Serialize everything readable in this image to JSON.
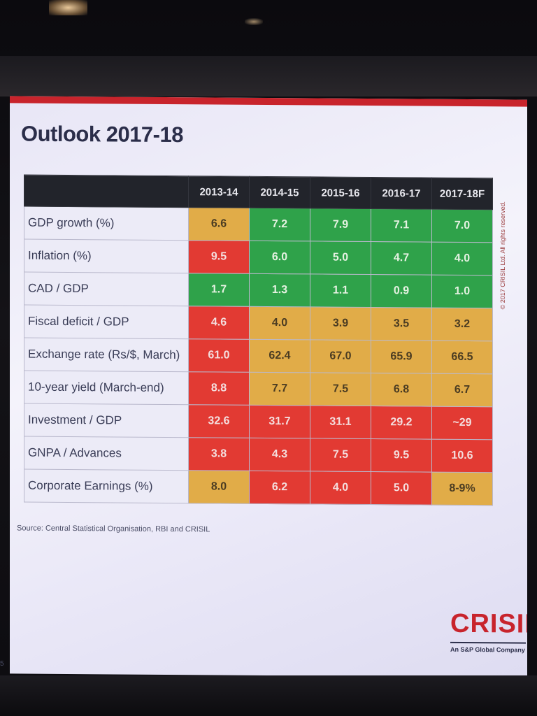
{
  "slide": {
    "title": "Outlook 2017-18",
    "source": "Source: Central Statistical Organisation, RBI and CRISIL",
    "copyright": "© 2017 CRISIL Ltd. All rights reserved.",
    "logo": "CRISIL",
    "logo_tagline": "An S&P Global Company",
    "page_number": "5"
  },
  "table": {
    "years": [
      "2013-14",
      "2014-15",
      "2015-16",
      "2016-17",
      "2017-18F"
    ],
    "rows": [
      {
        "label": "GDP growth (%)",
        "values": [
          "6.6",
          "7.2",
          "7.9",
          "7.1",
          "7.0"
        ],
        "colors": [
          "amber",
          "green",
          "green",
          "green",
          "green"
        ]
      },
      {
        "label": "Inflation (%)",
        "values": [
          "9.5",
          "6.0",
          "5.0",
          "4.7",
          "4.0"
        ],
        "colors": [
          "red",
          "green",
          "green",
          "green",
          "green"
        ]
      },
      {
        "label": "CAD / GDP",
        "values": [
          "1.7",
          "1.3",
          "1.1",
          "0.9",
          "1.0"
        ],
        "colors": [
          "green",
          "green",
          "green",
          "green",
          "green"
        ]
      },
      {
        "label": "Fiscal deficit / GDP",
        "values": [
          "4.6",
          "4.0",
          "3.9",
          "3.5",
          "3.2"
        ],
        "colors": [
          "red",
          "amber",
          "amber",
          "amber",
          "amber"
        ]
      },
      {
        "label": "Exchange rate (Rs/$, March)",
        "values": [
          "61.0",
          "62.4",
          "67.0",
          "65.9",
          "66.5"
        ],
        "colors": [
          "red",
          "amber",
          "amber",
          "amber",
          "amber"
        ]
      },
      {
        "label": "10-year yield (March-end)",
        "values": [
          "8.8",
          "7.7",
          "7.5",
          "6.8",
          "6.7"
        ],
        "colors": [
          "red",
          "amber",
          "amber",
          "amber",
          "amber"
        ]
      },
      {
        "label": "Investment / GDP",
        "values": [
          "32.6",
          "31.7",
          "31.1",
          "29.2",
          "~29"
        ],
        "colors": [
          "red",
          "red",
          "red",
          "red",
          "red"
        ]
      },
      {
        "label": "GNPA / Advances",
        "values": [
          "3.8",
          "4.3",
          "7.5",
          "9.5",
          "10.6"
        ],
        "colors": [
          "red",
          "red",
          "red",
          "red",
          "red"
        ]
      },
      {
        "label": "Corporate Earnings (%)",
        "values": [
          "8.0",
          "6.2",
          "4.0",
          "5.0",
          "8-9%"
        ],
        "colors": [
          "amber",
          "red",
          "red",
          "red",
          "amber"
        ]
      }
    ]
  },
  "colors": {
    "green": "#2fa24a",
    "amber": "#e1ac48",
    "red": "#e23a33",
    "brand": "#c8242c"
  }
}
